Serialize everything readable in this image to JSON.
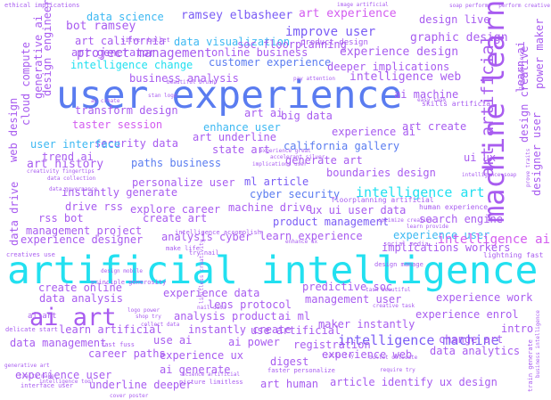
{
  "palette": {
    "cyan": "#22e0f0",
    "blue": "#5a7cf0",
    "indigo": "#7a5cf5",
    "purple": "#a85cf0",
    "magenta": "#d35cf0",
    "pink": "#ea68e8",
    "sky": "#3cb8f2"
  },
  "words": [
    "artificial intelligence",
    "user experience",
    "machine learn",
    "ai art",
    "art artificial",
    "experience user",
    "project management",
    "intelligence machine",
    "intelligence art",
    "intelligence ai",
    "data science",
    "ramsey elbasheer",
    "art experience",
    "design live",
    "bot ramsey",
    "improve user",
    "graphic design",
    "art california",
    "data visualization",
    "experience design",
    "intelligence change",
    "customer experience",
    "business analysis",
    "intelligence web",
    "transform design",
    "ai machine",
    "taster session",
    "big data",
    "enhance user",
    "experience ai",
    "art underline",
    "art create",
    "security data",
    "state art",
    "california gallery",
    "user interface",
    "trend ai",
    "generate art",
    "art history",
    "paths business",
    "boundaries design",
    "personalize user",
    "ml article",
    "instantly generate",
    "cyber security",
    "drive rss",
    "explore career",
    "machine drive",
    "ux ui user data",
    "rss bot",
    "create art",
    "search engine",
    "management project",
    "product management",
    "experience designer",
    "learn experience",
    "analysis cyber",
    "implications workers",
    "create online",
    "predictive soc",
    "experience data",
    "data analysis",
    "lens protocol",
    "management user",
    "experience work",
    "experience enrol",
    "analysis product",
    "ai ml",
    "maker instantly",
    "learn artificial",
    "instantly create",
    "use artificial",
    "intro",
    "change art",
    "data management",
    "use ai",
    "ai power",
    "registration",
    "data analytics",
    "career paths",
    "experience ux",
    "experience web",
    "digest",
    "ai generate",
    "experience user",
    "underline deeper",
    "art human",
    "article identify ux design",
    "power maker",
    "design creative",
    "designer user",
    "ui ux",
    "learn ai",
    "web design",
    "cloud compute",
    "generative ai",
    "design engineer",
    "data drive",
    "art generator",
    "online business",
    "soc floorplanning",
    "deeper implications",
    "skills artificial",
    "ai art",
    "art ai",
    "product design",
    "floorplanning artificial",
    "human experience",
    "intelligence accomplish",
    "design manage",
    "lightning fast",
    "ethical implications",
    "image artificial",
    "soap perform",
    "perform creative",
    "stan logo",
    "pay attention",
    "beautiful brush",
    "ai create",
    "silver bullet",
    "principle generosity",
    "nail data",
    "business intelligence",
    "delicate start",
    "shop try",
    "collect data",
    "task beautiful",
    "creative task",
    "fast fuss",
    "bullet delicate",
    "faster personalize",
    "picture limitless",
    "science artificial",
    "generative art",
    "interface user",
    "train generate",
    "design mobile",
    "experience great",
    "implications user",
    "accelerant silver",
    "optimize creative",
    "learn provide",
    "creativity fingertips",
    "data collection",
    "data governance",
    "social media",
    "make life",
    "try nail",
    "creatives use",
    "intelligence tool",
    "traits make",
    "logo power",
    "require try",
    "intelligence soap",
    "enhance ux",
    "cover poster",
    "tracks try",
    "limitless creativity",
    "easy task",
    "life easier",
    "prove traits",
    "creatives lightning",
    "design tech"
  ]
}
